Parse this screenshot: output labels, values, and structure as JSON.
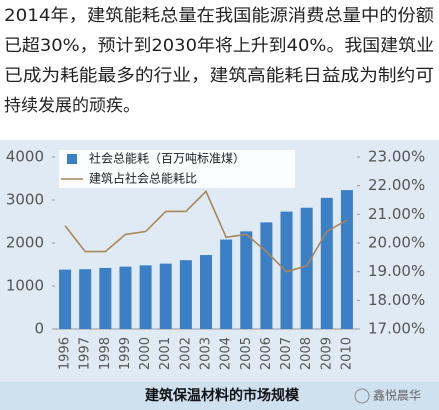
{
  "text": {
    "lines": [
      "2014年，建筑能耗总量在我国能源消费总量中的份额",
      "已超30%，预计到2030年将上升到40%。我国建筑业",
      "已成为耗能最多的行业，建筑高能耗日益成为制约可",
      "持续发展的顽疾。"
    ]
  },
  "chart_data": {
    "type": "combo",
    "categories": [
      "1996",
      "1997",
      "1998",
      "1999",
      "2000",
      "2001",
      "2002",
      "2003",
      "2004",
      "2005",
      "2006",
      "2007",
      "2008",
      "2009",
      "2010"
    ],
    "series": [
      {
        "name": "社会总能耗（百万吨标准煤）",
        "type": "bar",
        "color": "#3b7fc4",
        "values": [
          1380,
          1390,
          1420,
          1450,
          1480,
          1520,
          1600,
          1720,
          2080,
          2270,
          2480,
          2730,
          2820,
          3050,
          3230
        ]
      },
      {
        "name": "建筑占社会总能耗比",
        "type": "line",
        "axis": "y2",
        "color": "#a8865a",
        "values": [
          20.6,
          19.7,
          19.7,
          20.3,
          20.4,
          21.1,
          21.1,
          21.8,
          20.2,
          20.3,
          19.7,
          19.0,
          19.2,
          20.4,
          20.8
        ]
      }
    ],
    "ylim": [
      0,
      4000
    ],
    "yticks": [
      0,
      1000,
      2000,
      3000,
      4000
    ],
    "y2lim": [
      17,
      23
    ],
    "y2ticks": [
      {
        "value": 17,
        "label": "17.00%"
      },
      {
        "value": 18,
        "label": "18.00%"
      },
      {
        "value": 19,
        "label": "19.00%"
      },
      {
        "value": 20,
        "label": "20.00%"
      },
      {
        "value": 21,
        "label": "21.00%"
      },
      {
        "value": 22,
        "label": "22.00%"
      },
      {
        "value": 23,
        "label": "23.00%"
      }
    ],
    "grid": false,
    "legend": "top-left"
  },
  "caption": "建筑保温材料的市场规模",
  "source": "鑫悦晨华"
}
